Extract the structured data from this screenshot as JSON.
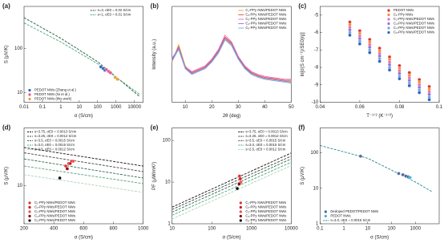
{
  "chart_data": [
    {
      "type": "line",
      "label": "(a)",
      "xlabel": "σ (S/cm)",
      "ylabel": "S (μV/K)",
      "xlog": true,
      "ylog": true,
      "xlim": [
        0.01,
        30000
      ],
      "ylim": [
        6,
        900
      ],
      "xticks": [
        0.01,
        0.1,
        1,
        10,
        100,
        1000,
        10000
      ],
      "yticks": [
        10,
        100
      ],
      "legend": {
        "lines": "upper right",
        "markers": "lower left"
      },
      "series": [
        {
          "name": "s=3, σE0 = 0.02 S/cm",
          "mode": "dashed",
          "color": "#1f5a3c",
          "x": [
            0.01,
            1,
            100,
            20000
          ],
          "values": [
            500,
            170,
            50,
            8
          ]
        },
        {
          "name": "s=1, σE0 = 0.01 S/cm",
          "mode": "dashed",
          "color": "#4aa57a",
          "x": [
            0.01,
            1,
            100,
            20000
          ],
          "values": [
            380,
            140,
            45,
            9
          ]
        },
        {
          "name": "PEDOT NWs (Zhang et al.)",
          "mode": "markers",
          "color": "#3563c4",
          "x": [
            150,
            200,
            250
          ],
          "values": [
            38,
            35,
            32
          ]
        },
        {
          "name": "PEDOT NWs (Ni et al.)",
          "mode": "markers",
          "color": "#e05a8a",
          "x": [
            300,
            400,
            500
          ],
          "values": [
            33,
            30,
            28
          ]
        },
        {
          "name": "PEDOT NWs (this work)",
          "mode": "markers",
          "color": "#e8a030",
          "x": [
            900,
            1200
          ],
          "values": [
            22,
            20
          ]
        }
      ]
    },
    {
      "type": "line",
      "label": "(b)",
      "xlabel": "2θ (deg)",
      "ylabel": "Intensity (a.u.)",
      "xlog": false,
      "ylog": false,
      "xlim": [
        5,
        50
      ],
      "ylim": [
        0,
        1
      ],
      "xticks": [
        10,
        20,
        30,
        40,
        50
      ],
      "yticks": [],
      "legend": {
        "lines": "upper right",
        "markers": "upper right"
      },
      "series": [
        {
          "name": "C₁-PPy NWs/PEDOT NWs",
          "mode": "solid",
          "color": "#f0a040",
          "x": [
            5,
            7.5,
            10,
            12.5,
            15,
            17.5,
            20,
            22.5,
            25,
            27.5,
            30,
            32.5,
            35,
            37.5,
            40,
            42.5,
            45,
            47.5,
            50
          ],
          "values": [
            0.42,
            0.6,
            0.38,
            0.3,
            0.33,
            0.36,
            0.42,
            0.52,
            0.66,
            0.6,
            0.46,
            0.36,
            0.3,
            0.27,
            0.25,
            0.24,
            0.23,
            0.22,
            0.22
          ]
        },
        {
          "name": "C₂-PPy NWs/PEDOT NWs",
          "mode": "solid",
          "color": "#e05050",
          "x": [
            5,
            7.5,
            10,
            12.5,
            15,
            17.5,
            20,
            22.5,
            25,
            27.5,
            30,
            32.5,
            35,
            37.5,
            40,
            42.5,
            45,
            47.5,
            50
          ],
          "values": [
            0.44,
            0.58,
            0.36,
            0.31,
            0.34,
            0.37,
            0.44,
            0.54,
            0.68,
            0.62,
            0.47,
            0.37,
            0.31,
            0.28,
            0.26,
            0.25,
            0.24,
            0.23,
            0.23
          ]
        },
        {
          "name": "C₃-PPy NWs/PEDOT NWs",
          "mode": "solid",
          "color": "#e870b0",
          "x": [
            5,
            7.5,
            10,
            12.5,
            15,
            17.5,
            20,
            22.5,
            25,
            27.5,
            30,
            32.5,
            35,
            37.5,
            40,
            42.5,
            45,
            47.5,
            50
          ],
          "values": [
            0.46,
            0.56,
            0.37,
            0.32,
            0.35,
            0.38,
            0.45,
            0.55,
            0.7,
            0.63,
            0.48,
            0.38,
            0.32,
            0.29,
            0.27,
            0.26,
            0.25,
            0.24,
            0.24
          ]
        },
        {
          "name": "C₄-PPy NWs/PEDOT NWs",
          "mode": "solid",
          "color": "#9a70d0",
          "x": [
            5,
            7.5,
            10,
            12.5,
            15,
            17.5,
            20,
            22.5,
            25,
            27.5,
            30,
            32.5,
            35,
            37.5,
            40,
            42.5,
            45,
            47.5,
            50
          ],
          "values": [
            0.45,
            0.57,
            0.36,
            0.3,
            0.33,
            0.36,
            0.43,
            0.53,
            0.67,
            0.61,
            0.46,
            0.36,
            0.3,
            0.27,
            0.25,
            0.24,
            0.23,
            0.22,
            0.21
          ]
        },
        {
          "name": "C₅-PPy NWs/PEDOT NWs",
          "mode": "solid",
          "color": "#70a8e0",
          "x": [
            5,
            7.5,
            10,
            12.5,
            15,
            17.5,
            20,
            22.5,
            25,
            27.5,
            30,
            32.5,
            35,
            37.5,
            40,
            42.5,
            45,
            47.5,
            50
          ],
          "values": [
            0.43,
            0.55,
            0.35,
            0.29,
            0.32,
            0.35,
            0.42,
            0.51,
            0.65,
            0.59,
            0.45,
            0.35,
            0.29,
            0.26,
            0.24,
            0.23,
            0.22,
            0.21,
            0.2
          ]
        }
      ]
    },
    {
      "type": "scatter",
      "label": "(c)",
      "xlabel": "T⁻¹ᐟ² (K⁻¹ᐟ²)",
      "ylabel": "ln[σ(S cm⁻¹)/SE0(η)]",
      "xlog": false,
      "ylog": false,
      "xlim": [
        0.04,
        0.1
      ],
      "ylim": [
        -10,
        -4.5
      ],
      "xticks": [
        0.04,
        0.06,
        0.08,
        0.1
      ],
      "yticks": [
        -10,
        -9,
        -8,
        -7,
        -6,
        -5
      ],
      "legend": {
        "lines": "upper right",
        "markers": "upper right"
      },
      "series": [
        {
          "name": "PEDOT NWs",
          "mode": "markers",
          "color": "#e03030",
          "x": [
            0.055,
            0.06,
            0.065,
            0.07,
            0.075,
            0.08,
            0.085,
            0.09,
            0.095
          ],
          "values": [
            -5.4,
            -5.9,
            -6.4,
            -6.9,
            -7.4,
            -7.9,
            -8.3,
            -8.7,
            -9.1
          ]
        },
        {
          "name": "C₁-PPy NWs",
          "mode": "markers",
          "color": "#f09030",
          "x": [
            0.055,
            0.06,
            0.065,
            0.07,
            0.075,
            0.08,
            0.085,
            0.09,
            0.095
          ],
          "values": [
            -5.55,
            -6.05,
            -6.55,
            -7.05,
            -7.55,
            -8.05,
            -8.45,
            -8.85,
            -9.25
          ]
        },
        {
          "name": "C₂-PPy NWs/PEDOT NWs",
          "mode": "markers",
          "color": "#e870b0",
          "x": [
            0.055,
            0.06,
            0.065,
            0.07,
            0.075,
            0.08,
            0.085,
            0.09,
            0.095
          ],
          "values": [
            -5.7,
            -6.2,
            -6.7,
            -7.2,
            -7.7,
            -8.2,
            -8.6,
            -9,
            -9.4
          ]
        },
        {
          "name": "C₃-PPy NWs/PEDOT NWs",
          "mode": "markers",
          "color": "#9a70d0",
          "x": [
            0.055,
            0.06,
            0.065,
            0.07,
            0.075,
            0.08,
            0.085,
            0.09,
            0.095
          ],
          "values": [
            -5.85,
            -6.35,
            -6.85,
            -7.35,
            -7.85,
            -8.35,
            -8.75,
            -9.15,
            -9.55
          ]
        },
        {
          "name": "C₄-PPy NWs/PEDOT NWs",
          "mode": "markers",
          "color": "#70a8e0",
          "x": [
            0.055,
            0.06,
            0.065,
            0.07,
            0.075,
            0.08,
            0.085,
            0.09,
            0.095
          ],
          "values": [
            -6,
            -6.5,
            -7,
            -7.5,
            -8,
            -8.5,
            -8.9,
            -9.3,
            -9.7
          ]
        },
        {
          "name": "C₅-PPy NWs/PEDOT NWs",
          "mode": "markers",
          "color": "#3060c0",
          "x": [
            0.055,
            0.06,
            0.065,
            0.07,
            0.075,
            0.08,
            0.085,
            0.09,
            0.095
          ],
          "values": [
            -6.15,
            -6.65,
            -7.15,
            -7.65,
            -8.15,
            -8.65,
            -9.05,
            -9.45,
            -9.85
          ]
        }
      ]
    },
    {
      "type": "line",
      "label": "(d)",
      "xlabel": "σ (S/cm)",
      "ylabel": "S (μV/K)",
      "xlog": false,
      "ylog": true,
      "xlim": [
        200,
        1000
      ],
      "ylim": [
        4,
        40
      ],
      "xticks": [
        200,
        400,
        600,
        800,
        1000
      ],
      "yticks": [
        10
      ],
      "legend": {
        "lines": "upper left",
        "markers": "lower left"
      },
      "series": [
        {
          "name": "s=3.75, σE0 = 0.0013 S/cm",
          "mode": "dashed",
          "color": "#111111",
          "x": [
            200,
            1000
          ],
          "values": [
            25,
            16
          ]
        },
        {
          "name": "s=3.25, σE0 = 0.0012 S/cm",
          "mode": "dashed",
          "color": "#404040",
          "x": [
            200,
            1000
          ],
          "values": [
            22,
            14
          ]
        },
        {
          "name": "s=3.5, σE0 = 0.0015 S/cm",
          "mode": "dashed",
          "color": "#2d6a4f",
          "x": [
            200,
            1000
          ],
          "values": [
            19,
            12
          ]
        },
        {
          "name": "s=3.0, σE0 = 0.0015 S/cm",
          "mode": "dashed",
          "color": "#52a37a",
          "x": [
            200,
            1000
          ],
          "values": [
            16,
            10.5
          ]
        },
        {
          "name": "s=2.5, σE0 = 0.0012 S/cm",
          "mode": "dashed",
          "color": "#a8d5b5",
          "x": [
            200,
            1000
          ],
          "values": [
            13,
            8.5
          ]
        },
        {
          "name": "C₁-PPy NWs/PEDOT NWs",
          "mode": "markers",
          "color": "#e03030",
          "x": [
            480,
            500
          ],
          "values": [
            16,
            17
          ]
        },
        {
          "name": "C₂-PPy NWs/PEDOT NWs",
          "mode": "markers",
          "color": "#c02020",
          "x": [
            510,
            520
          ],
          "values": [
            17,
            18
          ]
        },
        {
          "name": "C₃-PPy NWs/PEDOT NWs",
          "mode": "markers",
          "color": "#f05050",
          "x": [
            530
          ],
          "values": [
            18
          ]
        },
        {
          "name": "C₄-PPy NWs/PEDOT NWs",
          "mode": "markers",
          "color": "#900000",
          "x": [
            490
          ],
          "values": [
            15
          ]
        },
        {
          "name": "C₅-PPy NWs/PEDOT NWs",
          "mode": "markers",
          "color": "#111111",
          "x": [
            440
          ],
          "values": [
            12
          ]
        }
      ]
    },
    {
      "type": "line",
      "label": "(e)",
      "xlabel": "σ (S/cm)",
      "ylabel": "PF (μW/mK²)",
      "xlog": true,
      "ylog": true,
      "xlim": [
        10,
        10000
      ],
      "ylim": [
        1,
        200
      ],
      "xticks": [
        10,
        100,
        1000,
        10000
      ],
      "yticks": [
        1,
        10,
        100
      ],
      "legend": {
        "lines": "upper right",
        "markers": "lower right"
      },
      "series": [
        {
          "name": "s=3.75, σE0 = 0.0013 S/cm",
          "mode": "dashed",
          "color": "#111111",
          "x": [
            10,
            10000
          ],
          "values": [
            2.5,
            50
          ]
        },
        {
          "name": "s=3.25, σE0 = 0.0012 S/cm",
          "mode": "dashed",
          "color": "#404040",
          "x": [
            10,
            10000
          ],
          "values": [
            2.2,
            42
          ]
        },
        {
          "name": "s=3.5, σE0 = 0.0015 S/cm",
          "mode": "dashed",
          "color": "#2d6a4f",
          "x": [
            10,
            10000
          ],
          "values": [
            1.9,
            36
          ]
        },
        {
          "name": "s=3.0, σE0 = 0.0015 S/cm",
          "mode": "dashed",
          "color": "#52a37a",
          "x": [
            10,
            10000
          ],
          "values": [
            1.6,
            30
          ]
        },
        {
          "name": "s=2.5, σE0 = 0.0012 S/cm",
          "mode": "dashed",
          "color": "#a8d5b5",
          "x": [
            10,
            10000
          ],
          "values": [
            1.3,
            25
          ]
        },
        {
          "name": "C₁-PPy NWs/PEDOT NWs",
          "mode": "markers",
          "color": "#e03030",
          "x": [
            500
          ],
          "values": [
            14
          ]
        },
        {
          "name": "C₂-PPy NWs/PEDOT NWs",
          "mode": "markers",
          "color": "#c02020",
          "x": [
            520
          ],
          "values": [
            12
          ]
        },
        {
          "name": "C₃-PPy NWs/PEDOT NWs",
          "mode": "markers",
          "color": "#f05050",
          "x": [
            540
          ],
          "values": [
            10
          ]
        },
        {
          "name": "C₄-PPy NWs/PEDOT NWs",
          "mode": "markers",
          "color": "#900000",
          "x": [
            490
          ],
          "values": [
            9
          ]
        },
        {
          "name": "C₅-PPy NWs/PEDOT NWs",
          "mode": "markers",
          "color": "#111111",
          "x": [
            440
          ],
          "values": [
            7
          ]
        }
      ]
    },
    {
      "type": "line",
      "label": "(f)",
      "xlabel": "σ (S/cm)",
      "ylabel": "S (μV/K)",
      "xlog": true,
      "ylog": true,
      "xlim": [
        0.1,
        10000
      ],
      "ylim": [
        1,
        500
      ],
      "xticks": [
        0.1,
        1,
        10,
        100,
        1000
      ],
      "yticks": [
        1,
        10,
        100
      ],
      "legend": {
        "lines": "lower left",
        "markers": "lower left"
      },
      "series": [
        {
          "name": "s=3.0, σE0 = 0.0015 S/cm",
          "mode": "dashed",
          "color": "#2a8a8a",
          "x": [
            0.1,
            10,
            1000,
            5000
          ],
          "values": [
            160,
            70,
            15,
            8
          ]
        },
        {
          "name": "Dedoped PEDOT/PEDOT NWs",
          "mode": "markers",
          "color": "#4a6a9a",
          "x": [
            5,
            200,
            300,
            400,
            500
          ],
          "values": [
            80,
            26,
            24,
            22,
            21
          ]
        },
        {
          "name": "PEDOT NWs",
          "mode": "markers",
          "color": "#4ab0e0",
          "x": [
            600
          ],
          "values": [
            20
          ]
        }
      ]
    }
  ]
}
